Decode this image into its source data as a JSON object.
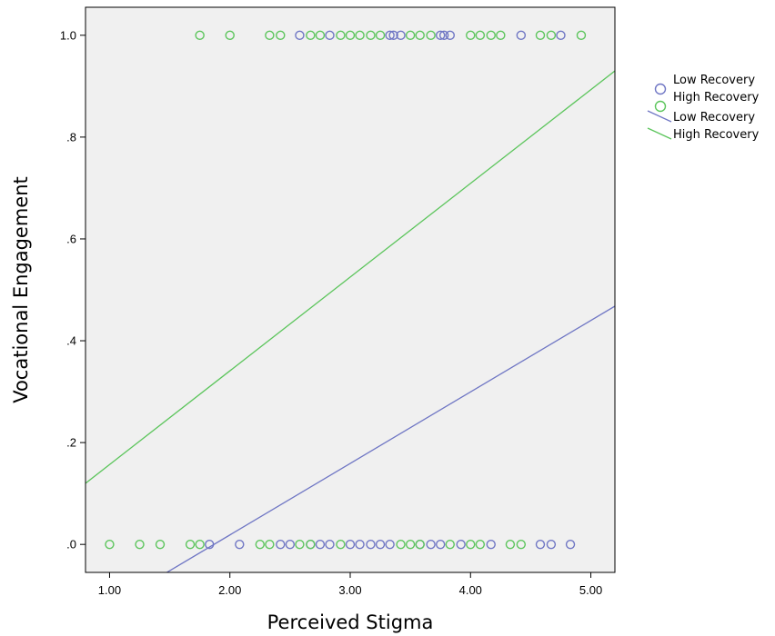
{
  "chart_data": {
    "type": "scatter",
    "xlabel": "Perceived Stigma",
    "ylabel": "Vocational Engagement",
    "xlim": [
      0.8,
      5.2
    ],
    "ylim": [
      -0.055,
      1.055
    ],
    "x_ticks": [
      {
        "value": 1,
        "label": "1.00"
      },
      {
        "value": 2,
        "label": "2.00"
      },
      {
        "value": 3,
        "label": "3.00"
      },
      {
        "value": 4,
        "label": "4.00"
      },
      {
        "value": 5,
        "label": "5.00"
      }
    ],
    "y_ticks": [
      {
        "value": 0,
        "label": ".0"
      },
      {
        "value": 0.2,
        "label": ".2"
      },
      {
        "value": 0.4,
        "label": ".4"
      },
      {
        "value": 0.6,
        "label": ".6"
      },
      {
        "value": 0.8,
        "label": ".8"
      },
      {
        "value": 1,
        "label": "1.0"
      }
    ],
    "grid": false,
    "legend_position": "right",
    "plot_background": "#f0f0f0",
    "series": [
      {
        "name": "Low Recovery",
        "kind": "points",
        "color": "#6f76c4",
        "points": [
          {
            "x": 2.58,
            "y": 1
          },
          {
            "x": 2.83,
            "y": 1
          },
          {
            "x": 3.33,
            "y": 1
          },
          {
            "x": 3.36,
            "y": 1
          },
          {
            "x": 3.42,
            "y": 1
          },
          {
            "x": 3.75,
            "y": 1
          },
          {
            "x": 3.78,
            "y": 1
          },
          {
            "x": 3.83,
            "y": 1
          },
          {
            "x": 4.42,
            "y": 1
          },
          {
            "x": 4.75,
            "y": 1
          },
          {
            "x": 1.83,
            "y": 0
          },
          {
            "x": 2.08,
            "y": 0
          },
          {
            "x": 2.42,
            "y": 0
          },
          {
            "x": 2.5,
            "y": 0
          },
          {
            "x": 2.67,
            "y": 0
          },
          {
            "x": 2.75,
            "y": 0
          },
          {
            "x": 2.83,
            "y": 0
          },
          {
            "x": 3.0,
            "y": 0
          },
          {
            "x": 3.08,
            "y": 0
          },
          {
            "x": 3.17,
            "y": 0
          },
          {
            "x": 3.25,
            "y": 0
          },
          {
            "x": 3.33,
            "y": 0
          },
          {
            "x": 3.58,
            "y": 0
          },
          {
            "x": 3.67,
            "y": 0
          },
          {
            "x": 3.75,
            "y": 0
          },
          {
            "x": 3.92,
            "y": 0
          },
          {
            "x": 4.17,
            "y": 0
          },
          {
            "x": 4.58,
            "y": 0
          },
          {
            "x": 4.67,
            "y": 0
          },
          {
            "x": 4.83,
            "y": 0
          }
        ]
      },
      {
        "name": "High Recovery",
        "kind": "points",
        "color": "#5cc55c",
        "points": [
          {
            "x": 1.75,
            "y": 1
          },
          {
            "x": 2.0,
            "y": 1
          },
          {
            "x": 2.33,
            "y": 1
          },
          {
            "x": 2.42,
            "y": 1
          },
          {
            "x": 2.67,
            "y": 1
          },
          {
            "x": 2.75,
            "y": 1
          },
          {
            "x": 2.92,
            "y": 1
          },
          {
            "x": 3.0,
            "y": 1
          },
          {
            "x": 3.08,
            "y": 1
          },
          {
            "x": 3.17,
            "y": 1
          },
          {
            "x": 3.25,
            "y": 1
          },
          {
            "x": 3.5,
            "y": 1
          },
          {
            "x": 3.58,
            "y": 1
          },
          {
            "x": 3.67,
            "y": 1
          },
          {
            "x": 4.0,
            "y": 1
          },
          {
            "x": 4.08,
            "y": 1
          },
          {
            "x": 4.17,
            "y": 1
          },
          {
            "x": 4.25,
            "y": 1
          },
          {
            "x": 4.58,
            "y": 1
          },
          {
            "x": 4.67,
            "y": 1
          },
          {
            "x": 4.92,
            "y": 1
          },
          {
            "x": 1.0,
            "y": 0
          },
          {
            "x": 1.25,
            "y": 0
          },
          {
            "x": 1.42,
            "y": 0
          },
          {
            "x": 1.67,
            "y": 0
          },
          {
            "x": 1.75,
            "y": 0
          },
          {
            "x": 2.25,
            "y": 0
          },
          {
            "x": 2.33,
            "y": 0
          },
          {
            "x": 2.58,
            "y": 0
          },
          {
            "x": 2.67,
            "y": 0
          },
          {
            "x": 2.92,
            "y": 0
          },
          {
            "x": 3.42,
            "y": 0
          },
          {
            "x": 3.5,
            "y": 0
          },
          {
            "x": 3.58,
            "y": 0
          },
          {
            "x": 3.83,
            "y": 0
          },
          {
            "x": 4.0,
            "y": 0
          },
          {
            "x": 4.08,
            "y": 0
          },
          {
            "x": 4.33,
            "y": 0
          },
          {
            "x": 4.42,
            "y": 0
          }
        ]
      },
      {
        "name": "Low Recovery",
        "kind": "fit_line",
        "color": "#6f76c4",
        "line": [
          {
            "x": 0.8,
            "y": -0.15
          },
          {
            "x": 5.2,
            "y": 0.468
          }
        ]
      },
      {
        "name": "High Recovery",
        "kind": "fit_line",
        "color": "#5cc55c",
        "line": [
          {
            "x": 0.8,
            "y": 0.12
          },
          {
            "x": 5.2,
            "y": 0.93
          }
        ]
      }
    ]
  }
}
